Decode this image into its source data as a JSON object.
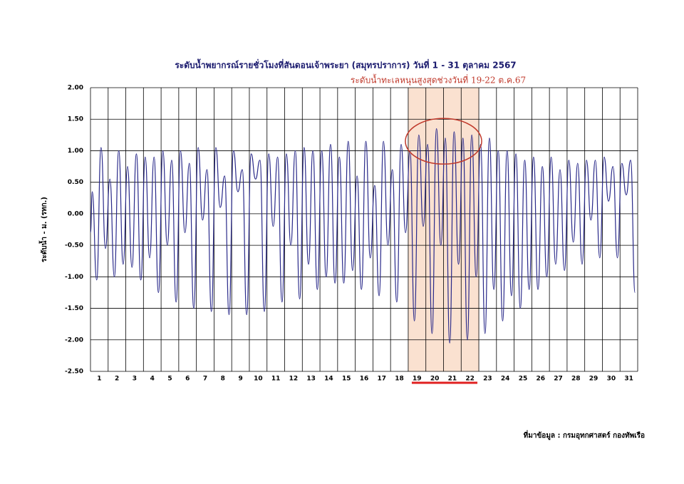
{
  "chart_data": {
    "type": "line",
    "title": "ระดับน้ำพยากรณ์รายชั่วโมงที่สันดอนเจ้าพระยา (สมุทรปราการ) วันที่ 1 - 31 ตุลาคม 2567",
    "subtitle": "ระดับน้ำทะเลหนุนสูงสุดช่วงวันที่ 19-22 ต.ค.67",
    "y_label": "ระดับน้ำ - ม. (รทก.)",
    "source": "ที่มาข้อมูล : กรมอุทกศาสตร์ กองทัพเรือ",
    "categories": [
      "1",
      "2",
      "3",
      "4",
      "5",
      "6",
      "7",
      "8",
      "9",
      "10",
      "11",
      "12",
      "13",
      "14",
      "15",
      "16",
      "17",
      "18",
      "19",
      "20",
      "21",
      "22",
      "23",
      "24",
      "25",
      "26",
      "27",
      "28",
      "29",
      "30",
      "31"
    ],
    "highlight_range": [
      18,
      22
    ],
    "xlim": [
      0,
      31
    ],
    "ylim": [
      -2.5,
      2.0
    ],
    "yticks": [
      {
        "value": 2.0,
        "label": "2.00"
      },
      {
        "value": 1.5,
        "label": "1.50"
      },
      {
        "value": 1.0,
        "label": "1.00"
      },
      {
        "value": 0.5,
        "label": "0.50"
      },
      {
        "value": 0.0,
        "label": "0.00"
      },
      {
        "value": -0.5,
        "label": "-0.50"
      },
      {
        "value": -1.0,
        "label": "-1.00"
      },
      {
        "value": -1.5,
        "label": "-1.50"
      },
      {
        "value": -2.0,
        "label": "-2.00"
      },
      {
        "value": -2.5,
        "label": "-2.50"
      }
    ],
    "grid": true,
    "x": [
      0,
      0.1,
      0.35,
      0.6,
      0.85,
      1.1,
      1.35,
      1.6,
      1.85,
      2.1,
      2.35,
      2.6,
      2.85,
      3.1,
      3.35,
      3.6,
      3.85,
      4.1,
      4.35,
      4.6,
      4.85,
      5.1,
      5.35,
      5.6,
      5.85,
      6.1,
      6.35,
      6.6,
      6.85,
      7.1,
      7.35,
      7.6,
      7.85,
      8.1,
      8.35,
      8.6,
      8.85,
      9.1,
      9.35,
      9.6,
      9.85,
      10.1,
      10.35,
      10.6,
      10.85,
      11.1,
      11.35,
      11.6,
      11.85,
      12.1,
      12.35,
      12.6,
      12.85,
      13.1,
      13.35,
      13.6,
      13.85,
      14.1,
      14.35,
      14.6,
      14.85,
      15.1,
      15.35,
      15.6,
      15.85,
      16.1,
      16.35,
      16.6,
      16.85,
      17.1,
      17.35,
      17.6,
      17.85,
      18.1,
      18.35,
      18.6,
      18.85,
      19.1,
      19.35,
      19.6,
      19.85,
      20.1,
      20.35,
      20.6,
      20.85,
      21.1,
      21.35,
      21.6,
      21.85,
      22.1,
      22.35,
      22.6,
      22.85,
      23.1,
      23.35,
      23.6,
      23.85,
      24.1,
      24.35,
      24.6,
      24.85,
      25.1,
      25.35,
      25.6,
      25.85,
      26.1,
      26.35,
      26.6,
      26.85,
      27.1,
      27.35,
      27.6,
      27.85,
      28.1,
      28.35,
      28.6,
      28.85,
      29.1,
      29.35,
      29.6,
      29.85,
      30.1,
      30.35,
      30.6,
      30.85
    ],
    "series": [
      {
        "name": "ระดับน้ำ",
        "color": "#2a2a8a",
        "values": [
          -0.3,
          0.35,
          -1.05,
          1.05,
          -0.55,
          0.55,
          -1.0,
          1.0,
          -0.8,
          0.75,
          -0.85,
          0.95,
          -1.05,
          0.9,
          -0.7,
          0.9,
          -1.25,
          1.0,
          -0.5,
          0.85,
          -1.4,
          1.0,
          -0.3,
          0.8,
          -1.5,
          1.05,
          -0.1,
          0.7,
          -1.55,
          1.05,
          0.1,
          0.6,
          -1.6,
          1.0,
          0.35,
          0.7,
          -1.6,
          0.95,
          0.55,
          0.85,
          -1.55,
          0.95,
          -0.2,
          0.9,
          -1.4,
          0.95,
          -0.5,
          1.0,
          -1.35,
          1.05,
          -0.8,
          1.0,
          -1.2,
          1.0,
          -1.0,
          1.1,
          -1.1,
          0.9,
          -1.1,
          1.15,
          -0.9,
          0.6,
          -1.2,
          1.15,
          -0.7,
          0.45,
          -1.3,
          1.15,
          -0.5,
          0.7,
          -1.4,
          1.1,
          -0.3,
          1.0,
          -1.7,
          1.25,
          -0.2,
          1.1,
          -1.9,
          1.35,
          -0.5,
          1.2,
          -2.05,
          1.3,
          -0.8,
          1.2,
          -2.0,
          1.25,
          -1.0,
          1.1,
          -1.9,
          1.2,
          -1.2,
          1.0,
          -1.7,
          1.0,
          -1.3,
          0.95,
          -1.5,
          0.85,
          -1.2,
          0.9,
          -1.2,
          0.75,
          -1.0,
          0.9,
          -0.8,
          0.7,
          -0.9,
          0.85,
          -0.45,
          0.8,
          -0.8,
          0.85,
          -0.1,
          0.85,
          -0.7,
          0.9,
          0.2,
          0.75,
          -0.7,
          0.8,
          0.3,
          0.85,
          -1.25
        ]
      }
    ]
  }
}
